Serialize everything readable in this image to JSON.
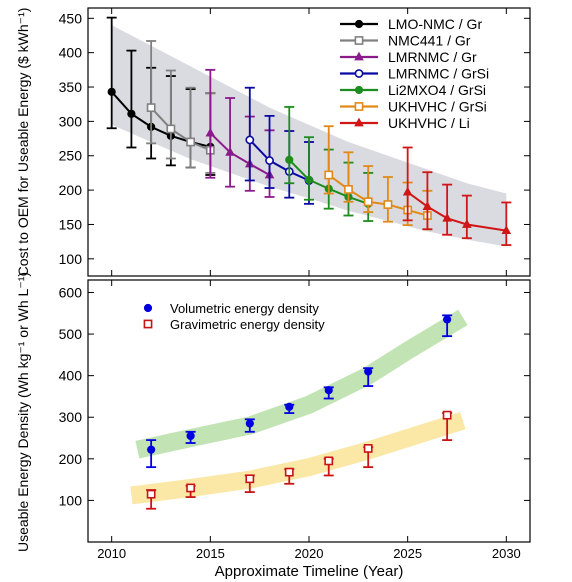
{
  "chart_data": [
    {
      "type": "line",
      "ylabel": "Cost to OEM for Useable Energy ($ kWh⁻¹)",
      "xlim": [
        2008.8,
        2031.2
      ],
      "ylim": [
        75,
        465
      ],
      "yticks": [
        100,
        150,
        200,
        250,
        300,
        350,
        400,
        450
      ],
      "band": {
        "x": [
          2010,
          2012,
          2014,
          2016,
          2018,
          2020,
          2022,
          2024,
          2026,
          2028,
          2030
        ],
        "upper": [
          440,
          410,
          380,
          350,
          320,
          295,
          270,
          250,
          230,
          210,
          195
        ],
        "lower": [
          295,
          270,
          245,
          225,
          205,
          188,
          170,
          155,
          140,
          128,
          118
        ],
        "color": "#d9dbe1"
      },
      "series": [
        {
          "name": "LMO-NMC / Gr",
          "color": "#000000",
          "marker": "circle",
          "filled": true,
          "x": [
            2010,
            2011,
            2012,
            2013,
            2014,
            2015
          ],
          "y": [
            343,
            311,
            292,
            279,
            270,
            263
          ],
          "err_hi": [
            451,
            403,
            378,
            366,
            347,
            341
          ],
          "err_lo": [
            290,
            262,
            246,
            236,
            233,
            222
          ]
        },
        {
          "name": "NMC441 / Gr",
          "color": "#808080",
          "marker": "square",
          "filled": false,
          "x": [
            2012,
            2013,
            2014,
            2015
          ],
          "y": [
            320,
            289,
            270,
            258
          ],
          "err_hi": [
            417,
            374,
            349,
            341
          ],
          "err_lo": [
            268,
            246,
            233,
            225
          ]
        },
        {
          "name": "LMRNMC / Gr",
          "color": "#8b1a8b",
          "marker": "triangle",
          "filled": true,
          "x": [
            2015,
            2016,
            2017,
            2018
          ],
          "y": [
            283,
            255,
            238,
            222
          ],
          "err_hi": [
            375,
            334,
            307,
            287
          ],
          "err_lo": [
            218,
            205,
            199,
            190
          ]
        },
        {
          "name": "LMRNMC / GrSi",
          "color": "#0a0aa0",
          "marker": "circle",
          "filled": false,
          "x": [
            2017,
            2018,
            2019,
            2020
          ],
          "y": [
            273,
            243,
            227,
            214
          ],
          "err_hi": [
            349,
            308,
            286,
            270
          ],
          "err_lo": [
            214,
            203,
            189,
            180
          ]
        },
        {
          "name": "Li2MXO4 / GrSi",
          "color": "#1e8c1e",
          "marker": "circle",
          "filled": true,
          "x": [
            2019,
            2020,
            2021,
            2022,
            2023
          ],
          "y": [
            244,
            215,
            202,
            190,
            180
          ],
          "err_hi": [
            321,
            277,
            259,
            240,
            225
          ],
          "err_lo": [
            210,
            186,
            173,
            163,
            155
          ]
        },
        {
          "name": "UKHVHC / GrSi",
          "color": "#e08a1a",
          "marker": "square",
          "filled": false,
          "x": [
            2021,
            2022,
            2023,
            2024,
            2025,
            2026
          ],
          "y": [
            222,
            201,
            183,
            179,
            171,
            163
          ],
          "err_hi": [
            293,
            255,
            235,
            219,
            211,
            199
          ],
          "err_lo": [
            195,
            183,
            168,
            154,
            149,
            143
          ]
        },
        {
          "name": "UKHVHC / Li",
          "color": "#d01616",
          "marker": "triangle",
          "filled": true,
          "x": [
            2025,
            2026,
            2027,
            2028,
            2030
          ],
          "y": [
            197,
            176,
            159,
            150,
            141
          ],
          "err_hi": [
            262,
            226,
            208,
            192,
            182
          ],
          "err_lo": [
            156,
            143,
            135,
            130,
            120
          ]
        }
      ]
    },
    {
      "type": "scatter",
      "xlabel": "Approximate Timeline (Year)",
      "ylabel": "Useable Energy Density (Wh kg⁻¹ or Wh L⁻¹)",
      "xlim": [
        2008.8,
        2031.2
      ],
      "ylim": [
        0,
        630
      ],
      "yticks": [
        100,
        200,
        300,
        400,
        500,
        600
      ],
      "xticks": [
        2010,
        2015,
        2020,
        2025,
        2030
      ],
      "bands": [
        {
          "color": "#bfe3b0",
          "x": [
            2011.3,
            2014,
            2017,
            2020,
            2023,
            2025,
            2027.8
          ],
          "y": [
            222,
            250,
            280,
            330,
            400,
            460,
            540
          ]
        },
        {
          "color": "#fbe7a1",
          "x": [
            2011,
            2014,
            2017,
            2020,
            2023,
            2025,
            2027.8
          ],
          "y": [
            112,
            130,
            150,
            180,
            220,
            250,
            292
          ]
        }
      ],
      "series": [
        {
          "name": "Volumetric energy density",
          "color": "#0000e0",
          "marker": "circle",
          "filled": true,
          "x": [
            2012,
            2014,
            2017,
            2019,
            2021,
            2023,
            2027
          ],
          "y": [
            222,
            255,
            285,
            325,
            365,
            410,
            535
          ],
          "err_hi": [
            245,
            265,
            295,
            330,
            372,
            418,
            545
          ],
          "err_lo": [
            180,
            238,
            265,
            310,
            345,
            375,
            495
          ]
        },
        {
          "name": "Gravimetric energy density",
          "color": "#c81414",
          "marker": "square",
          "filled": false,
          "x": [
            2012,
            2014,
            2017,
            2019,
            2021,
            2023,
            2027
          ],
          "y": [
            115,
            130,
            152,
            168,
            195,
            225,
            305
          ],
          "err_hi": [
            125,
            135,
            160,
            175,
            200,
            228,
            310
          ],
          "err_lo": [
            80,
            108,
            120,
            140,
            160,
            180,
            245
          ]
        }
      ]
    }
  ]
}
